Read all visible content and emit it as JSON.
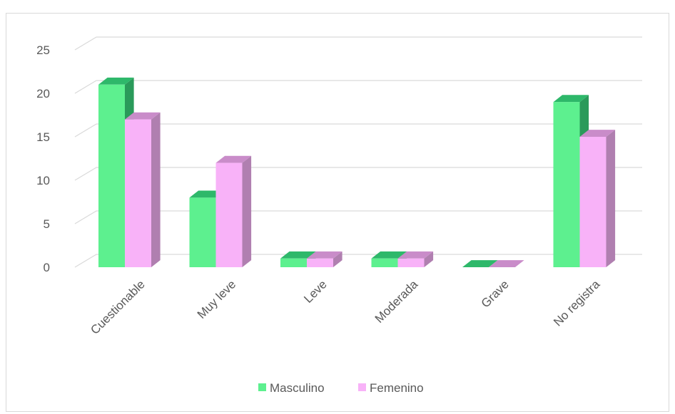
{
  "chart_data": {
    "type": "bar",
    "title": "",
    "xlabel": "",
    "ylabel": "",
    "categories": [
      "Cuestionable",
      "Muy leve",
      "Leve",
      "Moderada",
      "Grave",
      "No registra"
    ],
    "series": [
      {
        "name": "Masculino",
        "values": [
          21,
          8,
          1,
          1,
          0,
          19
        ],
        "color": "#5df08f",
        "top_color": "#2eb86a",
        "side_color": "#2a9a5a"
      },
      {
        "name": "Femenino",
        "values": [
          17,
          12,
          1,
          1,
          0,
          15
        ],
        "color": "#f8b2f8",
        "top_color": "#c98cc9",
        "side_color": "#b07fb0"
      }
    ],
    "ylim": [
      0,
      25
    ],
    "yticks": [
      0,
      5,
      10,
      15,
      20,
      25
    ],
    "grid": true,
    "style": "3d-clustered-column",
    "legend_position": "bottom"
  }
}
